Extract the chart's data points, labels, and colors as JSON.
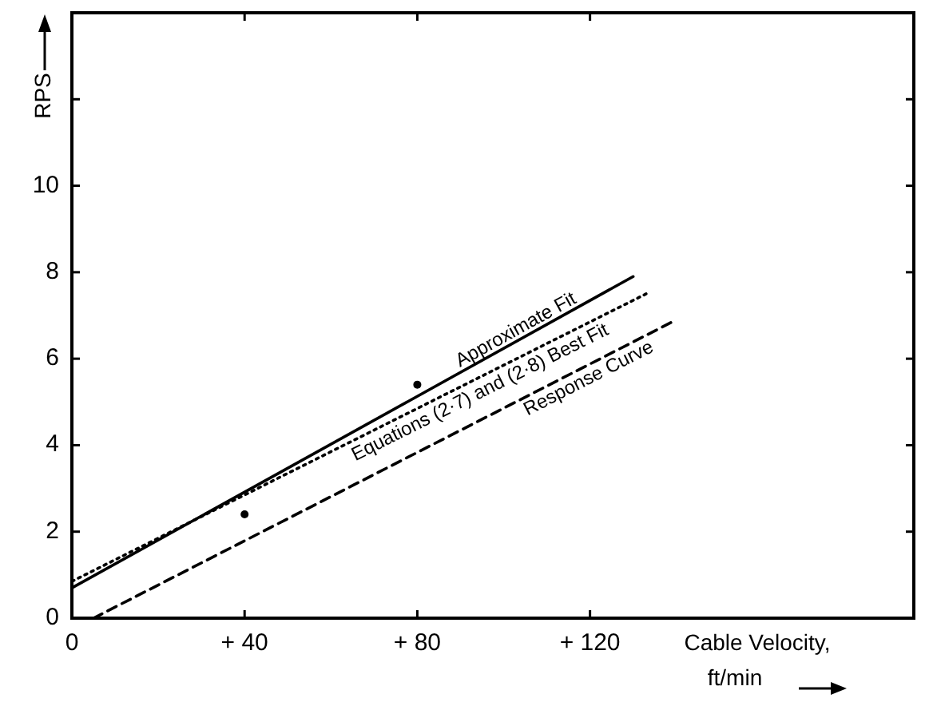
{
  "chart_data": {
    "type": "line",
    "xlabel": "Cable Velocity, ft/min",
    "ylabel": "RPS",
    "xlim": [
      0,
      195
    ],
    "ylim": [
      0,
      14
    ],
    "xticks": [
      0,
      {
        "value": 40,
        "label": "+ 40"
      },
      {
        "value": 80,
        "label": "+ 80"
      },
      {
        "value": 120,
        "label": "+ 120"
      }
    ],
    "yticks": [
      0,
      2,
      4,
      6,
      8,
      10,
      {
        "value": 12,
        "label": null
      }
    ],
    "grid": false,
    "series": [
      {
        "name": "Approximate Fit",
        "color": "#000000",
        "line_style": "solid",
        "x": [
          0,
          130
        ],
        "values": [
          0.7,
          7.9
        ]
      },
      {
        "name": "Equations (2·7) and (2·8) Best Fit",
        "color": "#000000",
        "line_style": "dotted",
        "x": [
          0,
          133
        ],
        "values": [
          0.85,
          7.5
        ]
      },
      {
        "name": "Response Curve",
        "color": "#000000",
        "line_style": "dashed",
        "x": [
          5,
          140
        ],
        "values": [
          0,
          6.9
        ]
      },
      {
        "type": "scatter",
        "color": "#000000",
        "marker": "circle",
        "x": [
          40,
          80
        ],
        "values": [
          2.4,
          5.4
        ]
      }
    ]
  }
}
